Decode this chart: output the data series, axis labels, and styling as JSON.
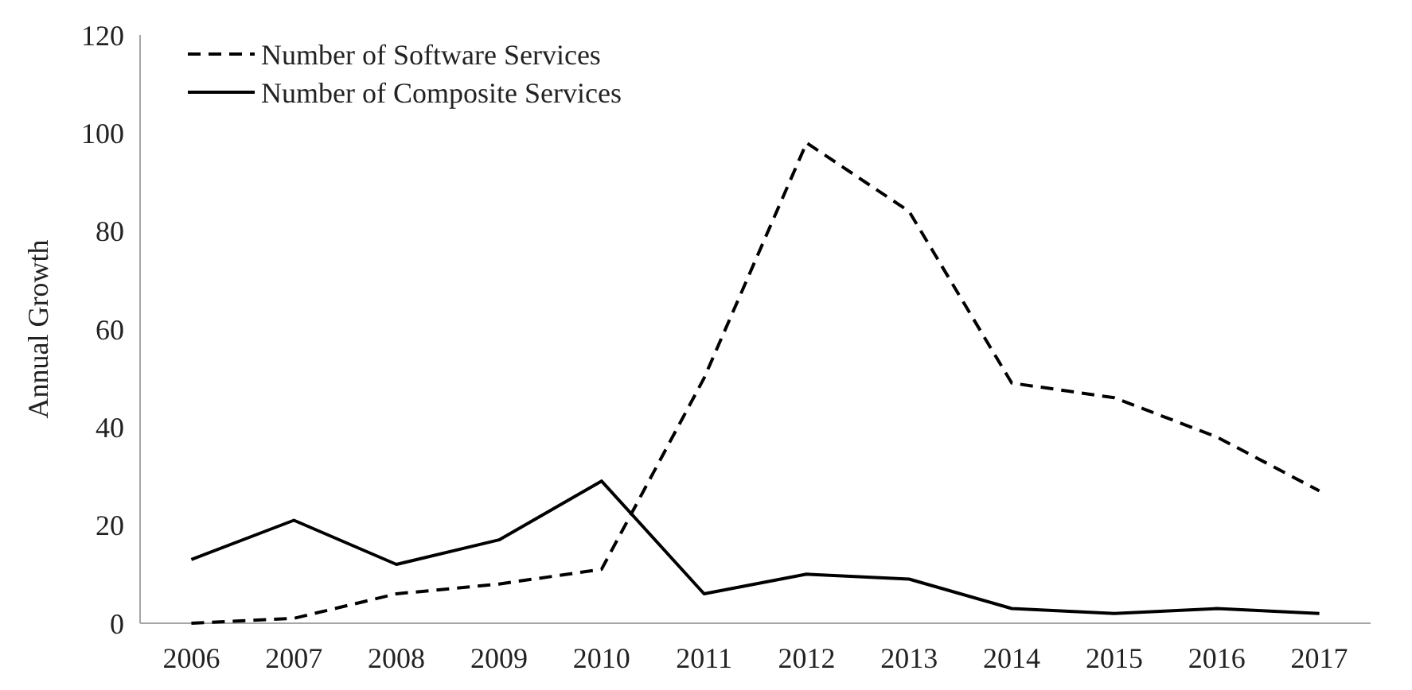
{
  "chart_data": {
    "type": "line",
    "ylabel": "Annual Growth",
    "categories": [
      "2006",
      "2007",
      "2008",
      "2009",
      "2010",
      "2011",
      "2012",
      "2013",
      "2014",
      "2015",
      "2016",
      "2017"
    ],
    "series": [
      {
        "name": "Number of Software Services",
        "color": "#000000",
        "line_style": "dashed",
        "values": [
          0,
          1,
          6,
          8,
          11,
          50,
          98,
          84,
          49,
          46,
          38,
          27
        ]
      },
      {
        "name": "Number of Composite Services",
        "color": "#000000",
        "line_style": "solid",
        "values": [
          13,
          21,
          12,
          17,
          29,
          6,
          10,
          9,
          3,
          2,
          3,
          2
        ]
      }
    ],
    "ylim": [
      0,
      120
    ],
    "yticks": [
      0,
      20,
      40,
      60,
      80,
      100,
      120
    ],
    "grid": false,
    "legend": "top left",
    "marker": "none"
  }
}
